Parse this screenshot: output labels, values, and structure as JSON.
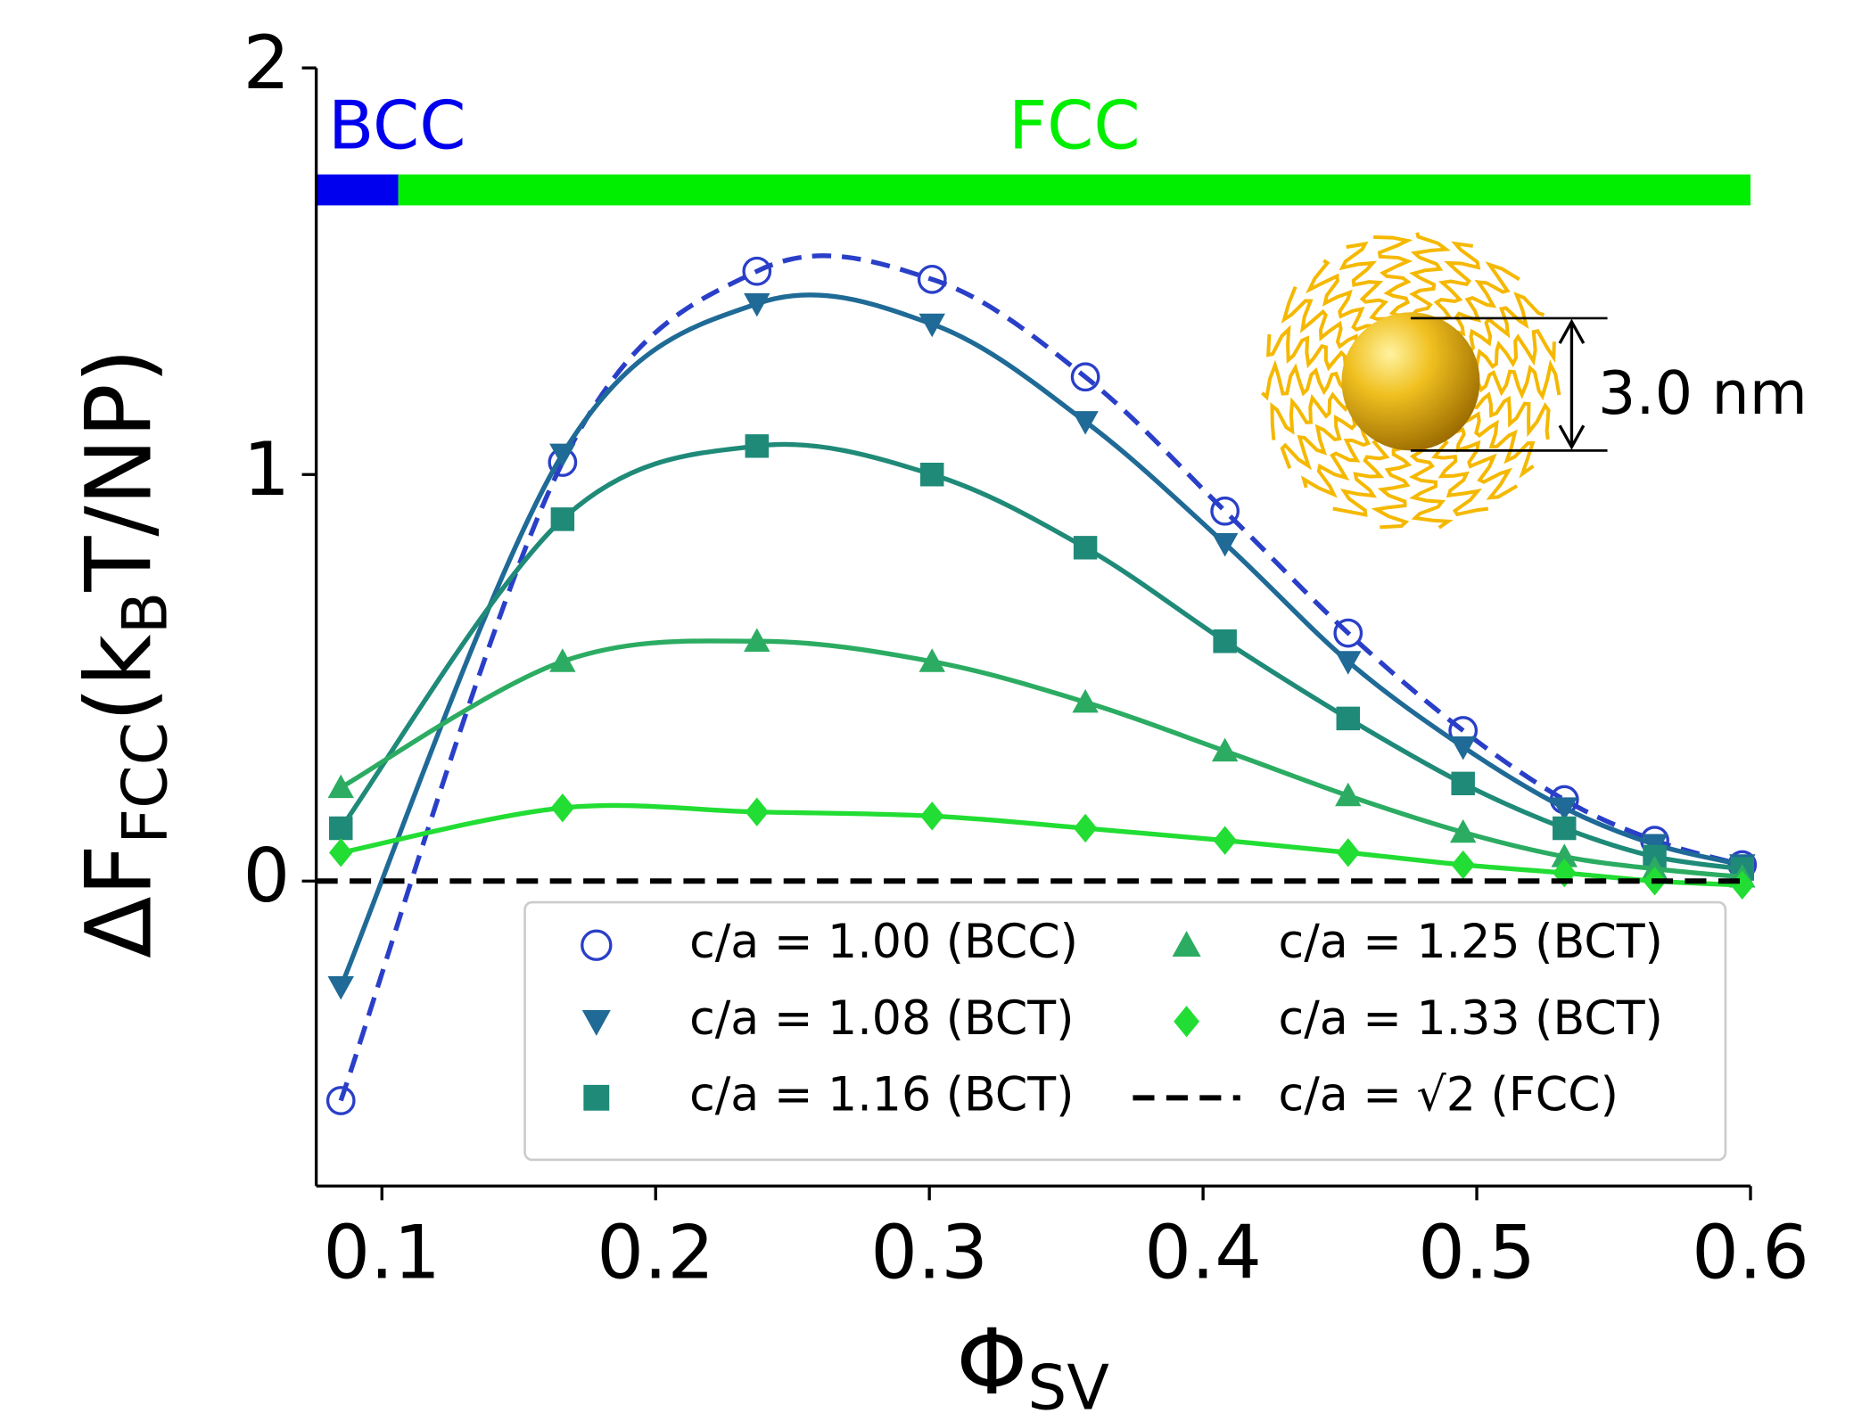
{
  "chart_data": {
    "type": "line",
    "x": [
      0.085,
      0.166,
      0.237,
      0.301,
      0.357,
      0.408,
      0.453,
      0.495,
      0.532,
      0.565,
      0.597
    ],
    "series": [
      {
        "name": "c/a = 1.00 (BCC)",
        "color": "#2a3fc8",
        "marker": "open-circle",
        "style": "dashed",
        "values": [
          -0.54,
          1.03,
          1.5,
          1.48,
          1.24,
          0.91,
          0.61,
          0.37,
          0.2,
          0.1,
          0.04
        ]
      },
      {
        "name": "c/a = 1.08 (BCT)",
        "color": "#1f6a96",
        "marker": "triangle-down",
        "style": "solid",
        "values": [
          -0.26,
          1.05,
          1.42,
          1.37,
          1.13,
          0.83,
          0.54,
          0.33,
          0.18,
          0.09,
          0.04
        ]
      },
      {
        "name": "c/a = 1.16 (BCT)",
        "color": "#1f8a78",
        "marker": "square",
        "style": "solid",
        "values": [
          0.13,
          0.89,
          1.07,
          1.0,
          0.82,
          0.59,
          0.4,
          0.24,
          0.13,
          0.06,
          0.03
        ]
      },
      {
        "name": "c/a = 1.25 (BCT)",
        "color": "#2bac62",
        "marker": "triangle-up",
        "style": "solid",
        "values": [
          0.23,
          0.54,
          0.59,
          0.54,
          0.44,
          0.32,
          0.21,
          0.12,
          0.06,
          0.03,
          0.01
        ]
      },
      {
        "name": "c/a = 1.33 (BCT)",
        "color": "#22dd33",
        "marker": "diamond",
        "style": "solid",
        "values": [
          0.07,
          0.18,
          0.17,
          0.16,
          0.13,
          0.1,
          0.07,
          0.04,
          0.02,
          0.0,
          -0.01
        ]
      },
      {
        "name": "c/a = √2 (FCC)",
        "color": "#000000",
        "style": "dashed",
        "y": 0
      }
    ],
    "xlabel": [
      "Φ",
      "SV"
    ],
    "ylabel": [
      "ΔF",
      "FCC",
      "(k",
      "B",
      "T/NP)"
    ],
    "xlim": [
      0.076,
      0.6
    ],
    "ylim": [
      -0.75,
      2
    ],
    "xticks": [
      0.1,
      0.2,
      0.3,
      0.4,
      0.5,
      0.6
    ],
    "yticks": [
      0,
      1,
      2
    ],
    "phase_bar": {
      "y": 1.7,
      "segments": [
        {
          "label": "BCC",
          "color": "#0000ee",
          "x": [
            0.076,
            0.106
          ]
        },
        {
          "label": "FCC",
          "color": "#00ee00",
          "x": [
            0.106,
            0.6
          ]
        }
      ]
    },
    "inset_label": "3.0 nm",
    "legend": "lower right"
  }
}
